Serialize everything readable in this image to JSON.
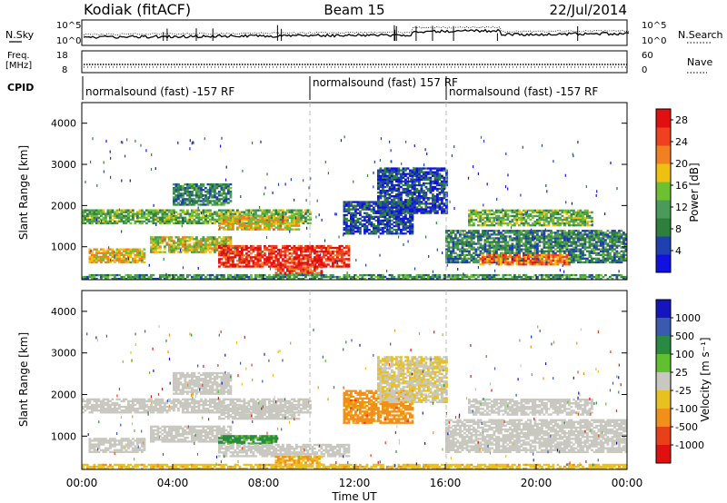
{
  "header": {
    "station": "Kodiak (fitACF)",
    "beam": "Beam 15",
    "date": "22/Jul/2014"
  },
  "panels": {
    "noise": {
      "left_label": "N.Sky",
      "right_label": "N.Search",
      "scale_top": "10^5",
      "scale_bottom": "10^0"
    },
    "freq": {
      "left_label_1": "Freq.",
      "left_label_2": "[MHz]",
      "right_label": "Nave",
      "left_ticks": [
        "18",
        "8"
      ],
      "right_ticks": [
        "60",
        "0"
      ]
    },
    "cpid": {
      "label": "CPID",
      "segments": [
        "normalsound (fast) -157 RF",
        "normalsound (fast) 157 RF",
        "normalsound (fast) -157 RF"
      ]
    }
  },
  "colors": {
    "power": [
      "#1010e0",
      "#2040b0",
      "#2e7e3c",
      "#4a9a5a",
      "#6fc030",
      "#f0c010",
      "#f08020",
      "#f04020",
      "#e01010"
    ],
    "velocity": [
      "#1515c0",
      "#3a5ab0",
      "#2a8a40",
      "#60c030",
      "#c8c8c0",
      "#e8c020",
      "#f09018",
      "#e84018",
      "#e01010"
    ],
    "ground_scatter": "#c8c8c0"
  },
  "chart_data": [
    {
      "name": "power",
      "type": "heatmap",
      "ylabel": "Slant Range [km]",
      "yticks": [
        1000,
        2000,
        3000,
        4000
      ],
      "ylim": [
        200,
        4500
      ],
      "xlim": [
        0,
        24
      ],
      "colorbar": {
        "label": "Power [dB]",
        "ticks": [
          4,
          8,
          12,
          16,
          20,
          24,
          28
        ],
        "range": [
          0,
          30
        ]
      },
      "bands": [
        {
          "t0": 0.0,
          "t1": 10.0,
          "r0": 1550,
          "r1": 1900,
          "level": 0.42
        },
        {
          "t0": 6.0,
          "t1": 9.5,
          "r0": 1400,
          "r1": 1750,
          "level": 0.62
        },
        {
          "t0": 0.3,
          "t1": 2.8,
          "r0": 600,
          "r1": 950,
          "level": 0.6
        },
        {
          "t0": 3.0,
          "t1": 6.5,
          "r0": 850,
          "r1": 1250,
          "level": 0.55
        },
        {
          "t0": 6.0,
          "t1": 11.7,
          "r0": 500,
          "r1": 1000,
          "level": 0.9
        },
        {
          "t0": 8.5,
          "t1": 10.5,
          "r0": 300,
          "r1": 500,
          "level": 0.85
        },
        {
          "t0": 11.5,
          "t1": 14.5,
          "r0": 1300,
          "r1": 2100,
          "level": 0.18
        },
        {
          "t0": 13.0,
          "t1": 16.0,
          "r0": 1800,
          "r1": 2900,
          "level": 0.15
        },
        {
          "t0": 16.0,
          "t1": 24.0,
          "r0": 600,
          "r1": 1400,
          "level": 0.3
        },
        {
          "t0": 17.0,
          "t1": 22.5,
          "r0": 1500,
          "r1": 1900,
          "level": 0.45
        },
        {
          "t0": 17.5,
          "t1": 21.5,
          "r0": 550,
          "r1": 800,
          "level": 0.75
        },
        {
          "t0": 4.0,
          "t1": 6.5,
          "r0": 2000,
          "r1": 2500,
          "level": 0.3
        },
        {
          "t0": 0.0,
          "t1": 24.0,
          "r0": 200,
          "r1": 330,
          "level": 0.35
        }
      ]
    },
    {
      "name": "velocity",
      "type": "heatmap",
      "ylabel": "Slant Range [km]",
      "xlabel": "Time UT",
      "xticks": [
        "00:00",
        "04:00",
        "08:00",
        "12:00",
        "16:00",
        "20:00",
        "00:00"
      ],
      "yticks": [
        1000,
        2000,
        3000,
        4000
      ],
      "ylim": [
        200,
        4500
      ],
      "xlim": [
        0,
        24
      ],
      "colorbar": {
        "label": "Velocity [m s⁻¹]",
        "ticks": [
          "1000",
          "500",
          "100",
          "25",
          "-25",
          "-100",
          "-500",
          "-1000"
        ]
      },
      "bands": [
        {
          "t0": 0.0,
          "t1": 10.0,
          "r0": 1550,
          "r1": 1900,
          "level": 0.5
        },
        {
          "t0": 6.0,
          "t1": 9.5,
          "r0": 1400,
          "r1": 1750,
          "level": 0.5
        },
        {
          "t0": 0.3,
          "t1": 2.8,
          "r0": 600,
          "r1": 950,
          "level": 0.5
        },
        {
          "t0": 3.0,
          "t1": 6.5,
          "r0": 850,
          "r1": 1250,
          "level": 0.5
        },
        {
          "t0": 6.0,
          "t1": 8.5,
          "r0": 800,
          "r1": 1000,
          "level": 0.3
        },
        {
          "t0": 6.0,
          "t1": 11.7,
          "r0": 500,
          "r1": 800,
          "level": 0.5
        },
        {
          "t0": 8.5,
          "t1": 10.5,
          "r0": 300,
          "r1": 500,
          "level": 0.68
        },
        {
          "t0": 11.5,
          "t1": 14.5,
          "r0": 1300,
          "r1": 2100,
          "level": 0.72
        },
        {
          "t0": 13.0,
          "t1": 16.0,
          "r0": 1800,
          "r1": 2900,
          "level": 0.55
        },
        {
          "t0": 16.0,
          "t1": 24.0,
          "r0": 600,
          "r1": 1400,
          "level": 0.5
        },
        {
          "t0": 17.0,
          "t1": 22.5,
          "r0": 1500,
          "r1": 1900,
          "level": 0.5
        },
        {
          "t0": 4.0,
          "t1": 6.5,
          "r0": 2000,
          "r1": 2500,
          "level": 0.5
        },
        {
          "t0": 0.0,
          "t1": 24.0,
          "r0": 200,
          "r1": 330,
          "level": 0.62
        }
      ]
    }
  ]
}
